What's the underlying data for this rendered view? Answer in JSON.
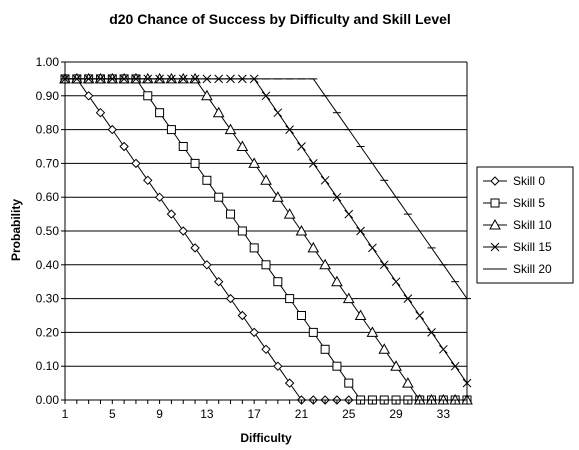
{
  "chart_data": {
    "type": "line",
    "title": "d20 Chance of Success by Difficulty and Skill Level",
    "xlabel": "Difficulty",
    "ylabel": "Probability",
    "xlim": [
      1,
      35
    ],
    "ylim": [
      0,
      1
    ],
    "x_ticks": [
      1,
      5,
      9,
      13,
      17,
      21,
      25,
      29,
      33
    ],
    "y_ticks": [
      "0.00",
      "0.10",
      "0.20",
      "0.30",
      "0.40",
      "0.50",
      "0.60",
      "0.70",
      "0.80",
      "0.90",
      "1.00"
    ],
    "grid": "horizontal",
    "legend_position": "right",
    "x": [
      1,
      2,
      3,
      4,
      5,
      6,
      7,
      8,
      9,
      10,
      11,
      12,
      13,
      14,
      15,
      16,
      17,
      18,
      19,
      20,
      21,
      22,
      23,
      24,
      25,
      26,
      27,
      28,
      29,
      30,
      31,
      32,
      33,
      34,
      35
    ],
    "series": [
      {
        "name": "Skill 0",
        "marker": "diamond",
        "values": [
          0.95,
          0.95,
          0.9,
          0.85,
          0.8,
          0.75,
          0.7,
          0.65,
          0.6,
          0.55,
          0.5,
          0.45,
          0.4,
          0.35,
          0.3,
          0.25,
          0.2,
          0.15,
          0.1,
          0.05,
          0.0,
          0.0,
          0.0,
          0.0,
          0.0,
          0.0,
          0.0,
          0.0,
          0.0,
          0.0,
          0.0,
          0.0,
          0.0,
          0.0,
          0.0
        ]
      },
      {
        "name": "Skill 5",
        "marker": "square",
        "values": [
          0.95,
          0.95,
          0.95,
          0.95,
          0.95,
          0.95,
          0.95,
          0.9,
          0.85,
          0.8,
          0.75,
          0.7,
          0.65,
          0.6,
          0.55,
          0.5,
          0.45,
          0.4,
          0.35,
          0.3,
          0.25,
          0.2,
          0.15,
          0.1,
          0.05,
          0.0,
          0.0,
          0.0,
          0.0,
          0.0,
          0.0,
          0.0,
          0.0,
          0.0,
          0.0
        ]
      },
      {
        "name": "Skill 10",
        "marker": "triangle",
        "values": [
          0.95,
          0.95,
          0.95,
          0.95,
          0.95,
          0.95,
          0.95,
          0.95,
          0.95,
          0.95,
          0.95,
          0.95,
          0.9,
          0.85,
          0.8,
          0.75,
          0.7,
          0.65,
          0.6,
          0.55,
          0.5,
          0.45,
          0.4,
          0.35,
          0.3,
          0.25,
          0.2,
          0.15,
          0.1,
          0.05,
          0.0,
          0.0,
          0.0,
          0.0,
          0.0
        ]
      },
      {
        "name": "Skill 15",
        "marker": "x",
        "values": [
          0.95,
          0.95,
          0.95,
          0.95,
          0.95,
          0.95,
          0.95,
          0.95,
          0.95,
          0.95,
          0.95,
          0.95,
          0.95,
          0.95,
          0.95,
          0.95,
          0.95,
          0.9,
          0.85,
          0.8,
          0.75,
          0.7,
          0.65,
          0.6,
          0.55,
          0.5,
          0.45,
          0.4,
          0.35,
          0.3,
          0.25,
          0.2,
          0.15,
          0.1,
          0.05
        ]
      },
      {
        "name": "Skill 20",
        "marker": "dash",
        "values": [
          0.95,
          0.95,
          0.95,
          0.95,
          0.95,
          0.95,
          0.95,
          0.95,
          0.95,
          0.95,
          0.95,
          0.95,
          0.95,
          0.95,
          0.95,
          0.95,
          0.95,
          0.95,
          0.95,
          0.95,
          0.95,
          0.95,
          0.9,
          0.85,
          0.8,
          0.75,
          0.7,
          0.65,
          0.6,
          0.55,
          0.5,
          0.45,
          0.4,
          0.35,
          0.3
        ]
      }
    ],
    "colors": {
      "line": "#000000",
      "grid": "#000000",
      "background": "#ffffff"
    }
  }
}
